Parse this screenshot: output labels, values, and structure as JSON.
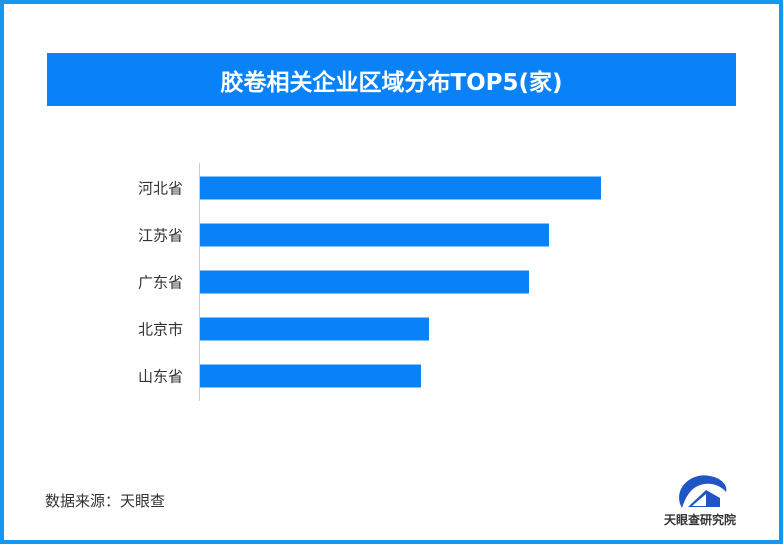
{
  "chart_data": {
    "type": "bar",
    "orientation": "horizontal",
    "title": "胶卷相关企业区域分布TOP5(家)",
    "categories": [
      "河北省",
      "江苏省",
      "广东省",
      "北京市",
      "山东省"
    ],
    "values": [
      100,
      87,
      82,
      57,
      55
    ],
    "value_note": "relative",
    "xlabel": "",
    "ylabel": "",
    "grid": false,
    "bar_color": "#0a82f7"
  },
  "source": "数据来源：天眼查",
  "logo_text": "天眼查研究院",
  "colors": {
    "border": "#1596f0",
    "title_bg": "#0a82f7"
  }
}
